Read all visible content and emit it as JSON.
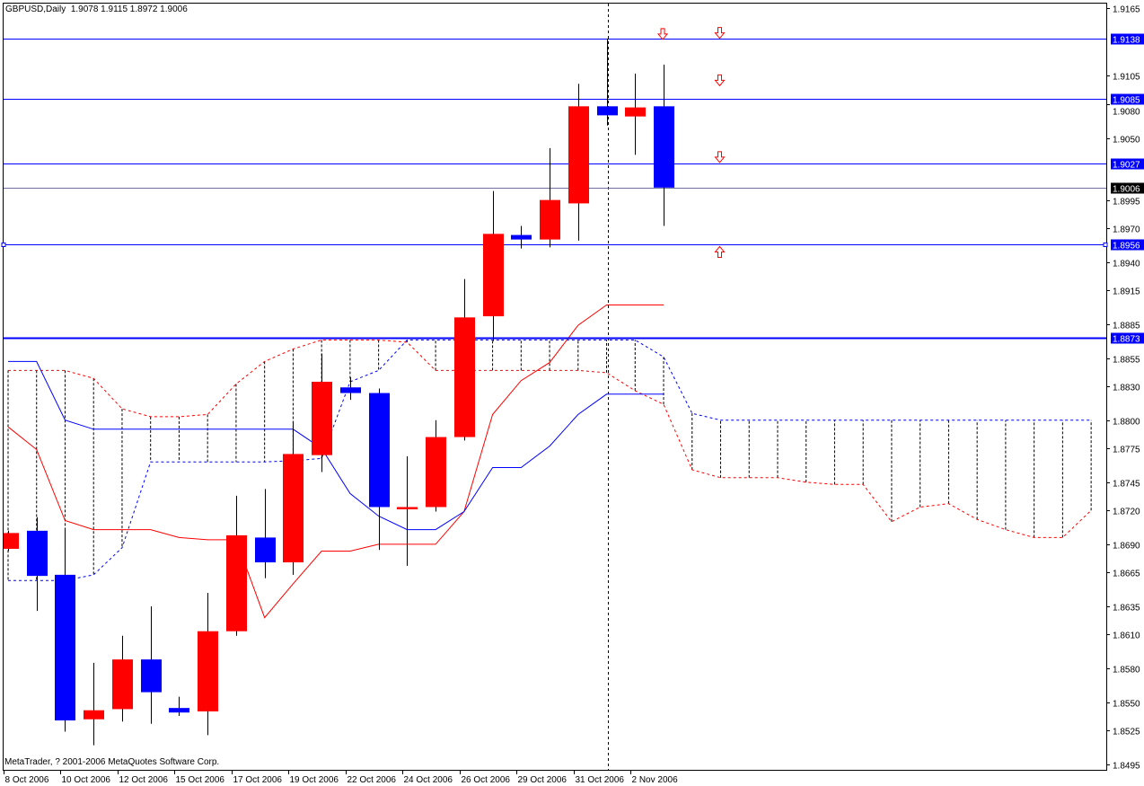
{
  "header": {
    "symbol_period": "GBPUSD,Daily",
    "ohlc": "1.9078 1.9115 1.8972 1.9006"
  },
  "copyright": "MetaTrader, ? 2001-2006 MetaQuotes Software Corp.",
  "colors": {
    "bull": "#ff0000",
    "bear": "#0000ff",
    "tenkan": "#ff0000",
    "kijun": "#0000ff",
    "senkou_a": "#ff0000",
    "senkou_b": "#0000ff",
    "level_line": "#0000ff",
    "bid_line": "#7070a0",
    "background": "#ffffff"
  },
  "chart_data": {
    "type": "candlestick",
    "symbol": "GBPUSD",
    "period": "Daily",
    "ylim": [
      1.8495,
      1.9165
    ],
    "grid": false,
    "y_ticks": [
      1.9165,
      1.9105,
      1.908,
      1.905,
      1.8995,
      1.897,
      1.894,
      1.8915,
      1.8885,
      1.8855,
      1.883,
      1.88,
      1.8775,
      1.8745,
      1.872,
      1.869,
      1.8665,
      1.8635,
      1.861,
      1.858,
      1.855,
      1.8525,
      1.8495
    ],
    "x_labels": [
      {
        "bar": 0,
        "label": "8 Oct 2006"
      },
      {
        "bar": 2,
        "label": "10 Oct 2006"
      },
      {
        "bar": 4,
        "label": "12 Oct 2006"
      },
      {
        "bar": 6,
        "label": "15 Oct 2006"
      },
      {
        "bar": 8,
        "label": "17 Oct 2006"
      },
      {
        "bar": 10,
        "label": "19 Oct 2006"
      },
      {
        "bar": 12,
        "label": "22 Oct 2006"
      },
      {
        "bar": 14,
        "label": "24 Oct 2006"
      },
      {
        "bar": 16,
        "label": "26 Oct 2006"
      },
      {
        "bar": 18,
        "label": "29 Oct 2006"
      },
      {
        "bar": 20,
        "label": "31 Oct 2006"
      },
      {
        "bar": 22,
        "label": "2 Nov 2006"
      }
    ],
    "candles": [
      {
        "o": 1.8686,
        "h": 1.8702,
        "l": 1.8684,
        "c": 1.87
      },
      {
        "o": 1.8702,
        "h": 1.8714,
        "l": 1.8631,
        "c": 1.8662
      },
      {
        "o": 1.8663,
        "h": 1.8703,
        "l": 1.8524,
        "c": 1.8534
      },
      {
        "o": 1.8535,
        "h": 1.8585,
        "l": 1.8512,
        "c": 1.8543
      },
      {
        "o": 1.8544,
        "h": 1.8609,
        "l": 1.8533,
        "c": 1.8588
      },
      {
        "o": 1.8588,
        "h": 1.8635,
        "l": 1.8531,
        "c": 1.8559
      },
      {
        "o": 1.8545,
        "h": 1.8555,
        "l": 1.8538,
        "c": 1.8541
      },
      {
        "o": 1.8542,
        "h": 1.8647,
        "l": 1.8521,
        "c": 1.8613
      },
      {
        "o": 1.8613,
        "h": 1.8733,
        "l": 1.8609,
        "c": 1.8698
      },
      {
        "o": 1.8696,
        "h": 1.8739,
        "l": 1.866,
        "c": 1.8674
      },
      {
        "o": 1.8674,
        "h": 1.8798,
        "l": 1.8663,
        "c": 1.877
      },
      {
        "o": 1.8769,
        "h": 1.8859,
        "l": 1.8754,
        "c": 1.8834
      },
      {
        "o": 1.8829,
        "h": 1.8838,
        "l": 1.8818,
        "c": 1.8824
      },
      {
        "o": 1.8824,
        "h": 1.8828,
        "l": 1.8685,
        "c": 1.8723
      },
      {
        "o": 1.8721,
        "h": 1.8768,
        "l": 1.8671,
        "c": 1.8723
      },
      {
        "o": 1.8723,
        "h": 1.88,
        "l": 1.8719,
        "c": 1.8785
      },
      {
        "o": 1.8785,
        "h": 1.8925,
        "l": 1.8782,
        "c": 1.8891
      },
      {
        "o": 1.8892,
        "h": 1.9003,
        "l": 1.887,
        "c": 1.8965
      },
      {
        "o": 1.8964,
        "h": 1.8972,
        "l": 1.8952,
        "c": 1.896
      },
      {
        "o": 1.896,
        "h": 1.9041,
        "l": 1.8953,
        "c": 1.8995
      },
      {
        "o": 1.8992,
        "h": 1.9098,
        "l": 1.8959,
        "c": 1.9078
      },
      {
        "o": 1.9078,
        "h": 1.9138,
        "l": 1.9061,
        "c": 1.907
      },
      {
        "o": 1.9069,
        "h": 1.9107,
        "l": 1.9035,
        "c": 1.9077
      },
      {
        "o": 1.9078,
        "h": 1.9115,
        "l": 1.8972,
        "c": 1.9006
      }
    ],
    "ichimoku": {
      "tenkan": [
        1.8794,
        1.8774,
        1.8711,
        1.8703,
        1.8703,
        1.8703,
        1.8696,
        1.8694,
        1.8694,
        1.8625,
        1.8655,
        1.8684,
        1.8684,
        1.869,
        1.869,
        1.869,
        1.8719,
        1.8805,
        1.8835,
        1.8851,
        1.8884,
        1.8902,
        1.8902,
        1.8902
      ],
      "kijun": [
        1.8852,
        1.8852,
        1.88,
        1.8792,
        1.8792,
        1.8792,
        1.8792,
        1.8792,
        1.8792,
        1.8792,
        1.8792,
        1.8775,
        1.8735,
        1.8715,
        1.8703,
        1.8703,
        1.8719,
        1.8758,
        1.8758,
        1.8777,
        1.8805,
        1.8823,
        1.8823,
        1.8823
      ],
      "senkou_a": [
        1.8844,
        1.8844,
        1.8844,
        1.8837,
        1.881,
        1.8803,
        1.8803,
        1.8805,
        1.8832,
        1.8852,
        1.8863,
        1.8871,
        1.8871,
        1.8871,
        1.8869,
        1.8844,
        1.8844,
        1.8844,
        1.8844,
        1.8844,
        1.8844,
        1.8842,
        1.8826,
        1.8814,
        1.8756,
        1.8749,
        1.8749,
        1.8749,
        1.8745,
        1.8743,
        1.8743,
        1.871,
        1.8723,
        1.8726,
        1.8712,
        1.8703,
        1.8696,
        1.8696,
        1.872
      ],
      "senkou_b": [
        1.8658,
        1.8658,
        1.8658,
        1.8663,
        1.8687,
        1.8763,
        1.8763,
        1.8763,
        1.8763,
        1.8763,
        1.8764,
        1.8766,
        1.8834,
        1.8844,
        1.8871,
        1.8871,
        1.8871,
        1.8871,
        1.8871,
        1.8871,
        1.8871,
        1.8871,
        1.8871,
        1.8856,
        1.8806,
        1.88,
        1.88,
        1.88,
        1.88,
        1.88,
        1.88,
        1.88,
        1.88,
        1.88,
        1.88,
        1.88,
        1.88,
        1.88,
        1.88
      ]
    },
    "levels": [
      {
        "price": 1.9138,
        "label": "1.9138"
      },
      {
        "price": 1.9085,
        "label": "1.9085"
      },
      {
        "price": 1.9027,
        "label": "1.9027"
      },
      {
        "price": 1.8956,
        "label": "1.8956",
        "selected": true
      },
      {
        "price": 1.8873,
        "label": "1.8873",
        "thick": true
      }
    ],
    "bid": {
      "price": 1.9006,
      "label": "1.9006"
    },
    "crosshair_bar": 21,
    "arrows": [
      {
        "bar": 23,
        "price": 1.9142,
        "dir": "down"
      },
      {
        "bar": 25,
        "price": 1.9143,
        "dir": "down"
      },
      {
        "bar": 25,
        "price": 1.9101,
        "dir": "down"
      },
      {
        "bar": 25,
        "price": 1.9033,
        "dir": "down"
      },
      {
        "bar": 25,
        "price": 1.8949,
        "dir": "up"
      }
    ]
  }
}
